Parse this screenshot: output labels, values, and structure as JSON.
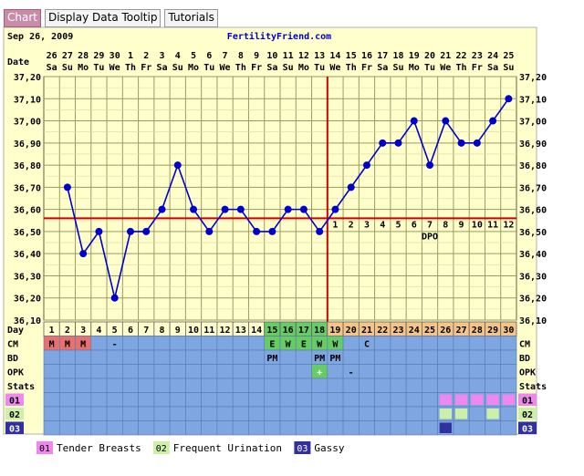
{
  "tabs": [
    {
      "label": "Chart",
      "active": true
    },
    {
      "label": "Display Data Tooltip",
      "active": false
    },
    {
      "label": "Tutorials",
      "active": false
    }
  ],
  "header": {
    "date": "Sep 26, 2009",
    "site": "FertilityFriend.com"
  },
  "colors": {
    "panel": "#ffffcc",
    "grid": "#9a9a60",
    "line": "#0000cc",
    "coverline": "#cc0000",
    "day_pre": "#ffffcc",
    "day_fertile": "#66cc66",
    "day_post": "#f4c488",
    "row_blue": "#7ea6e0",
    "row_pink": "#e87070",
    "row_green": "#66cc66",
    "stat_pink": "#ee88ee",
    "stat_lime": "#ccf0a8",
    "stat_navy": "#3030a0"
  },
  "chart_data": {
    "type": "line",
    "title": "",
    "ylabel": "",
    "ylim": [
      36.1,
      37.2
    ],
    "yticks": [
      "36,10",
      "36,20",
      "36,30",
      "36,40",
      "36,50",
      "36,60",
      "36,70",
      "36,80",
      "36,90",
      "37,00",
      "37,10",
      "37,20"
    ],
    "row_labels": {
      "date": "Date",
      "day": "Day",
      "cm": "CM",
      "bd": "BD",
      "opk": "OPK",
      "stats": "Stats"
    },
    "dates": [
      "26",
      "27",
      "28",
      "29",
      "30",
      "1",
      "2",
      "3",
      "4",
      "5",
      "6",
      "7",
      "8",
      "9",
      "10",
      "11",
      "12",
      "13",
      "14",
      "15",
      "16",
      "17",
      "18",
      "19",
      "20",
      "21",
      "22",
      "23",
      "24",
      "25"
    ],
    "weekdays": [
      "Sa",
      "Su",
      "Mo",
      "Tu",
      "We",
      "Th",
      "Fr",
      "Sa",
      "Su",
      "Mo",
      "Tu",
      "We",
      "Th",
      "Fr",
      "Sa",
      "Su",
      "Mo",
      "Tu",
      "We",
      "Th",
      "Fr",
      "Sa",
      "Su",
      "Mo",
      "Tu",
      "We",
      "Th",
      "Fr",
      "Sa",
      "Su"
    ],
    "days": [
      1,
      2,
      3,
      4,
      5,
      6,
      7,
      8,
      9,
      10,
      11,
      12,
      13,
      14,
      15,
      16,
      17,
      18,
      19,
      20,
      21,
      22,
      23,
      24,
      25,
      26,
      27,
      28,
      29,
      30
    ],
    "temps": [
      null,
      36.7,
      36.4,
      36.5,
      36.2,
      36.5,
      36.5,
      36.6,
      36.8,
      36.6,
      36.5,
      36.6,
      36.6,
      36.5,
      36.5,
      36.6,
      36.6,
      36.5,
      36.6,
      36.7,
      36.8,
      36.9,
      36.9,
      37.0,
      36.8,
      37.0,
      36.9,
      36.9,
      37.0,
      37.1
    ],
    "coverline": 36.56,
    "ovulation_day": 18,
    "dpo_labels": [
      "1",
      "2",
      "3",
      "4",
      "5",
      "6",
      "7",
      "8",
      "9",
      "10",
      "11",
      "12"
    ],
    "dpo_text": "DPO",
    "fertile_days": [
      15,
      16,
      17,
      18
    ],
    "post_days_from": 19,
    "cm": {
      "1": "M",
      "2": "M",
      "3": "M",
      "5": "-",
      "15": "E",
      "16": "W",
      "17": "E",
      "18": "W",
      "19": "W",
      "21": "C"
    },
    "cm_pink_days": [
      1,
      2,
      3
    ],
    "cm_green_days": [
      15,
      16,
      17,
      18,
      19
    ],
    "bd": {
      "15": "PM",
      "18": "PM",
      "19": "PM"
    },
    "opk": {
      "18": "+",
      "20": "-"
    },
    "stat_rows": [
      {
        "code": "01",
        "color": "pink",
        "days": [
          26,
          27,
          28,
          29,
          30
        ]
      },
      {
        "code": "02",
        "color": "lime",
        "days": [
          26,
          27,
          29
        ]
      },
      {
        "code": "03",
        "color": "navy",
        "days": [
          26
        ]
      }
    ],
    "legend": [
      {
        "code": "01",
        "label": "Tender Breasts",
        "color": "pink"
      },
      {
        "code": "02",
        "label": "Frequent Urination",
        "color": "lime"
      },
      {
        "code": "03",
        "label": "Gassy",
        "color": "navy"
      }
    ]
  }
}
